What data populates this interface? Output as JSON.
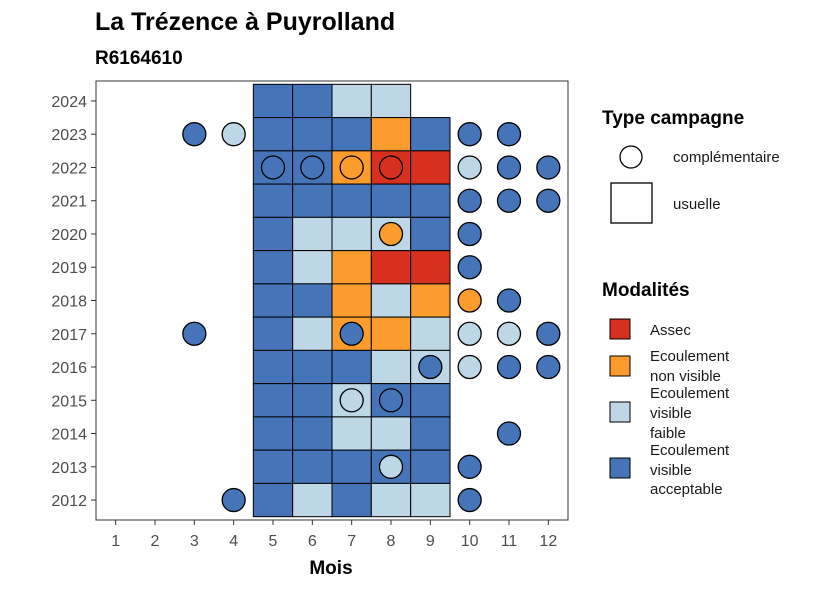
{
  "chart_data": {
    "type": "heatmap",
    "title": "La Trézence à Puyrolland",
    "subtitle": "R6164610",
    "xlabel": "Mois",
    "ylabel": "",
    "x_ticks": [
      1,
      2,
      3,
      4,
      5,
      6,
      7,
      8,
      9,
      10,
      11,
      12
    ],
    "y_ticks": [
      2012,
      2013,
      2014,
      2015,
      2016,
      2017,
      2018,
      2019,
      2020,
      2021,
      2022,
      2023,
      2024
    ],
    "xlim": [
      0.5,
      12.5
    ],
    "ylim": [
      2011.4,
      2024.6
    ],
    "grid": false,
    "colors": {
      "Assec": "#d7301f",
      "Ecoulement non visible": "#fc9c2c",
      "Ecoulement visible faible": "#bdd7e7",
      "Ecoulement visible acceptable": "#4575b8"
    },
    "legend_campagne": {
      "title": "Type campagne",
      "items": [
        {
          "shape": "circle",
          "label": "complémentaire"
        },
        {
          "shape": "square",
          "label": "usuelle"
        }
      ]
    },
    "legend_modalites": {
      "title": "Modalités",
      "items": [
        {
          "key": "Assec",
          "lines": [
            "Assec"
          ]
        },
        {
          "key": "Ecoulement non visible",
          "lines": [
            "Ecoulement",
            "non visible"
          ]
        },
        {
          "key": "Ecoulement visible faible",
          "lines": [
            "Ecoulement",
            "visible",
            "faible"
          ]
        },
        {
          "key": "Ecoulement visible acceptable",
          "lines": [
            "Ecoulement",
            "visible",
            "acceptable"
          ]
        }
      ]
    },
    "usuelle": [
      {
        "year": 2024,
        "months": [
          "Ecoulement visible acceptable",
          "Ecoulement visible acceptable",
          "Ecoulement visible faible",
          "Ecoulement visible faible"
        ]
      },
      {
        "year": 2023,
        "months": [
          "Ecoulement visible acceptable",
          "Ecoulement visible acceptable",
          "Ecoulement visible acceptable",
          "Ecoulement non visible",
          "Ecoulement visible acceptable"
        ]
      },
      {
        "year": 2022,
        "months": [
          "Ecoulement visible acceptable",
          "Ecoulement visible acceptable",
          "Ecoulement non visible",
          "Assec",
          "Assec"
        ]
      },
      {
        "year": 2021,
        "months": [
          "Ecoulement visible acceptable",
          "Ecoulement visible acceptable",
          "Ecoulement visible acceptable",
          "Ecoulement visible acceptable",
          "Ecoulement visible acceptable"
        ]
      },
      {
        "year": 2020,
        "months": [
          "Ecoulement visible acceptable",
          "Ecoulement visible faible",
          "Ecoulement visible faible",
          "Ecoulement visible faible",
          "Ecoulement visible acceptable"
        ]
      },
      {
        "year": 2019,
        "months": [
          "Ecoulement visible acceptable",
          "Ecoulement visible faible",
          "Ecoulement non visible",
          "Assec",
          "Assec"
        ]
      },
      {
        "year": 2018,
        "months": [
          "Ecoulement visible acceptable",
          "Ecoulement visible acceptable",
          "Ecoulement non visible",
          "Ecoulement visible faible",
          "Ecoulement non visible"
        ]
      },
      {
        "year": 2017,
        "months": [
          "Ecoulement visible acceptable",
          "Ecoulement visible faible",
          "Ecoulement non visible",
          "Ecoulement non visible",
          "Ecoulement visible faible"
        ]
      },
      {
        "year": 2016,
        "months": [
          "Ecoulement visible acceptable",
          "Ecoulement visible acceptable",
          "Ecoulement visible acceptable",
          "Ecoulement visible faible",
          "Ecoulement visible faible"
        ]
      },
      {
        "year": 2015,
        "months": [
          "Ecoulement visible acceptable",
          "Ecoulement visible acceptable",
          "Ecoulement visible faible",
          "Ecoulement visible acceptable",
          "Ecoulement visible acceptable"
        ]
      },
      {
        "year": 2014,
        "months": [
          "Ecoulement visible acceptable",
          "Ecoulement visible acceptable",
          "Ecoulement visible faible",
          "Ecoulement visible faible",
          "Ecoulement visible acceptable"
        ]
      },
      {
        "year": 2013,
        "months": [
          "Ecoulement visible acceptable",
          "Ecoulement visible acceptable",
          "Ecoulement visible acceptable",
          "Ecoulement visible acceptable",
          "Ecoulement visible acceptable"
        ]
      },
      {
        "year": 2012,
        "months": [
          "Ecoulement visible acceptable",
          "Ecoulement visible faible",
          "Ecoulement visible acceptable",
          "Ecoulement visible faible",
          "Ecoulement visible faible"
        ]
      }
    ],
    "usuelle_start_month": 5,
    "complementaire": [
      {
        "year": 2023,
        "month": 3,
        "value": "Ecoulement visible acceptable"
      },
      {
        "year": 2023,
        "month": 4,
        "value": "Ecoulement visible faible"
      },
      {
        "year": 2023,
        "month": 10,
        "value": "Ecoulement visible acceptable"
      },
      {
        "year": 2023,
        "month": 11,
        "value": "Ecoulement visible acceptable"
      },
      {
        "year": 2022,
        "month": 5,
        "value": "Ecoulement visible acceptable"
      },
      {
        "year": 2022,
        "month": 6,
        "value": "Ecoulement visible acceptable"
      },
      {
        "year": 2022,
        "month": 7,
        "value": "Ecoulement non visible"
      },
      {
        "year": 2022,
        "month": 8,
        "value": "Assec"
      },
      {
        "year": 2022,
        "month": 10,
        "value": "Ecoulement visible faible"
      },
      {
        "year": 2022,
        "month": 11,
        "value": "Ecoulement visible acceptable"
      },
      {
        "year": 2022,
        "month": 12,
        "value": "Ecoulement visible acceptable"
      },
      {
        "year": 2021,
        "month": 10,
        "value": "Ecoulement visible acceptable"
      },
      {
        "year": 2021,
        "month": 11,
        "value": "Ecoulement visible acceptable"
      },
      {
        "year": 2021,
        "month": 12,
        "value": "Ecoulement visible acceptable"
      },
      {
        "year": 2020,
        "month": 8,
        "value": "Ecoulement non visible"
      },
      {
        "year": 2020,
        "month": 10,
        "value": "Ecoulement visible acceptable"
      },
      {
        "year": 2019,
        "month": 10,
        "value": "Ecoulement visible acceptable"
      },
      {
        "year": 2018,
        "month": 10,
        "value": "Ecoulement non visible"
      },
      {
        "year": 2018,
        "month": 11,
        "value": "Ecoulement visible acceptable"
      },
      {
        "year": 2017,
        "month": 3,
        "value": "Ecoulement visible acceptable"
      },
      {
        "year": 2017,
        "month": 7,
        "value": "Ecoulement visible acceptable"
      },
      {
        "year": 2017,
        "month": 10,
        "value": "Ecoulement visible faible"
      },
      {
        "year": 2017,
        "month": 11,
        "value": "Ecoulement visible faible"
      },
      {
        "year": 2017,
        "month": 12,
        "value": "Ecoulement visible acceptable"
      },
      {
        "year": 2016,
        "month": 9,
        "value": "Ecoulement visible acceptable"
      },
      {
        "year": 2016,
        "month": 10,
        "value": "Ecoulement visible faible"
      },
      {
        "year": 2016,
        "month": 11,
        "value": "Ecoulement visible acceptable"
      },
      {
        "year": 2016,
        "month": 12,
        "value": "Ecoulement visible acceptable"
      },
      {
        "year": 2015,
        "month": 7,
        "value": "Ecoulement visible faible"
      },
      {
        "year": 2015,
        "month": 8,
        "value": "Ecoulement visible acceptable"
      },
      {
        "year": 2014,
        "month": 11,
        "value": "Ecoulement visible acceptable"
      },
      {
        "year": 2013,
        "month": 8,
        "value": "Ecoulement visible faible"
      },
      {
        "year": 2013,
        "month": 10,
        "value": "Ecoulement visible acceptable"
      },
      {
        "year": 2012,
        "month": 4,
        "value": "Ecoulement visible acceptable"
      },
      {
        "year": 2012,
        "month": 10,
        "value": "Ecoulement visible acceptable"
      }
    ]
  }
}
